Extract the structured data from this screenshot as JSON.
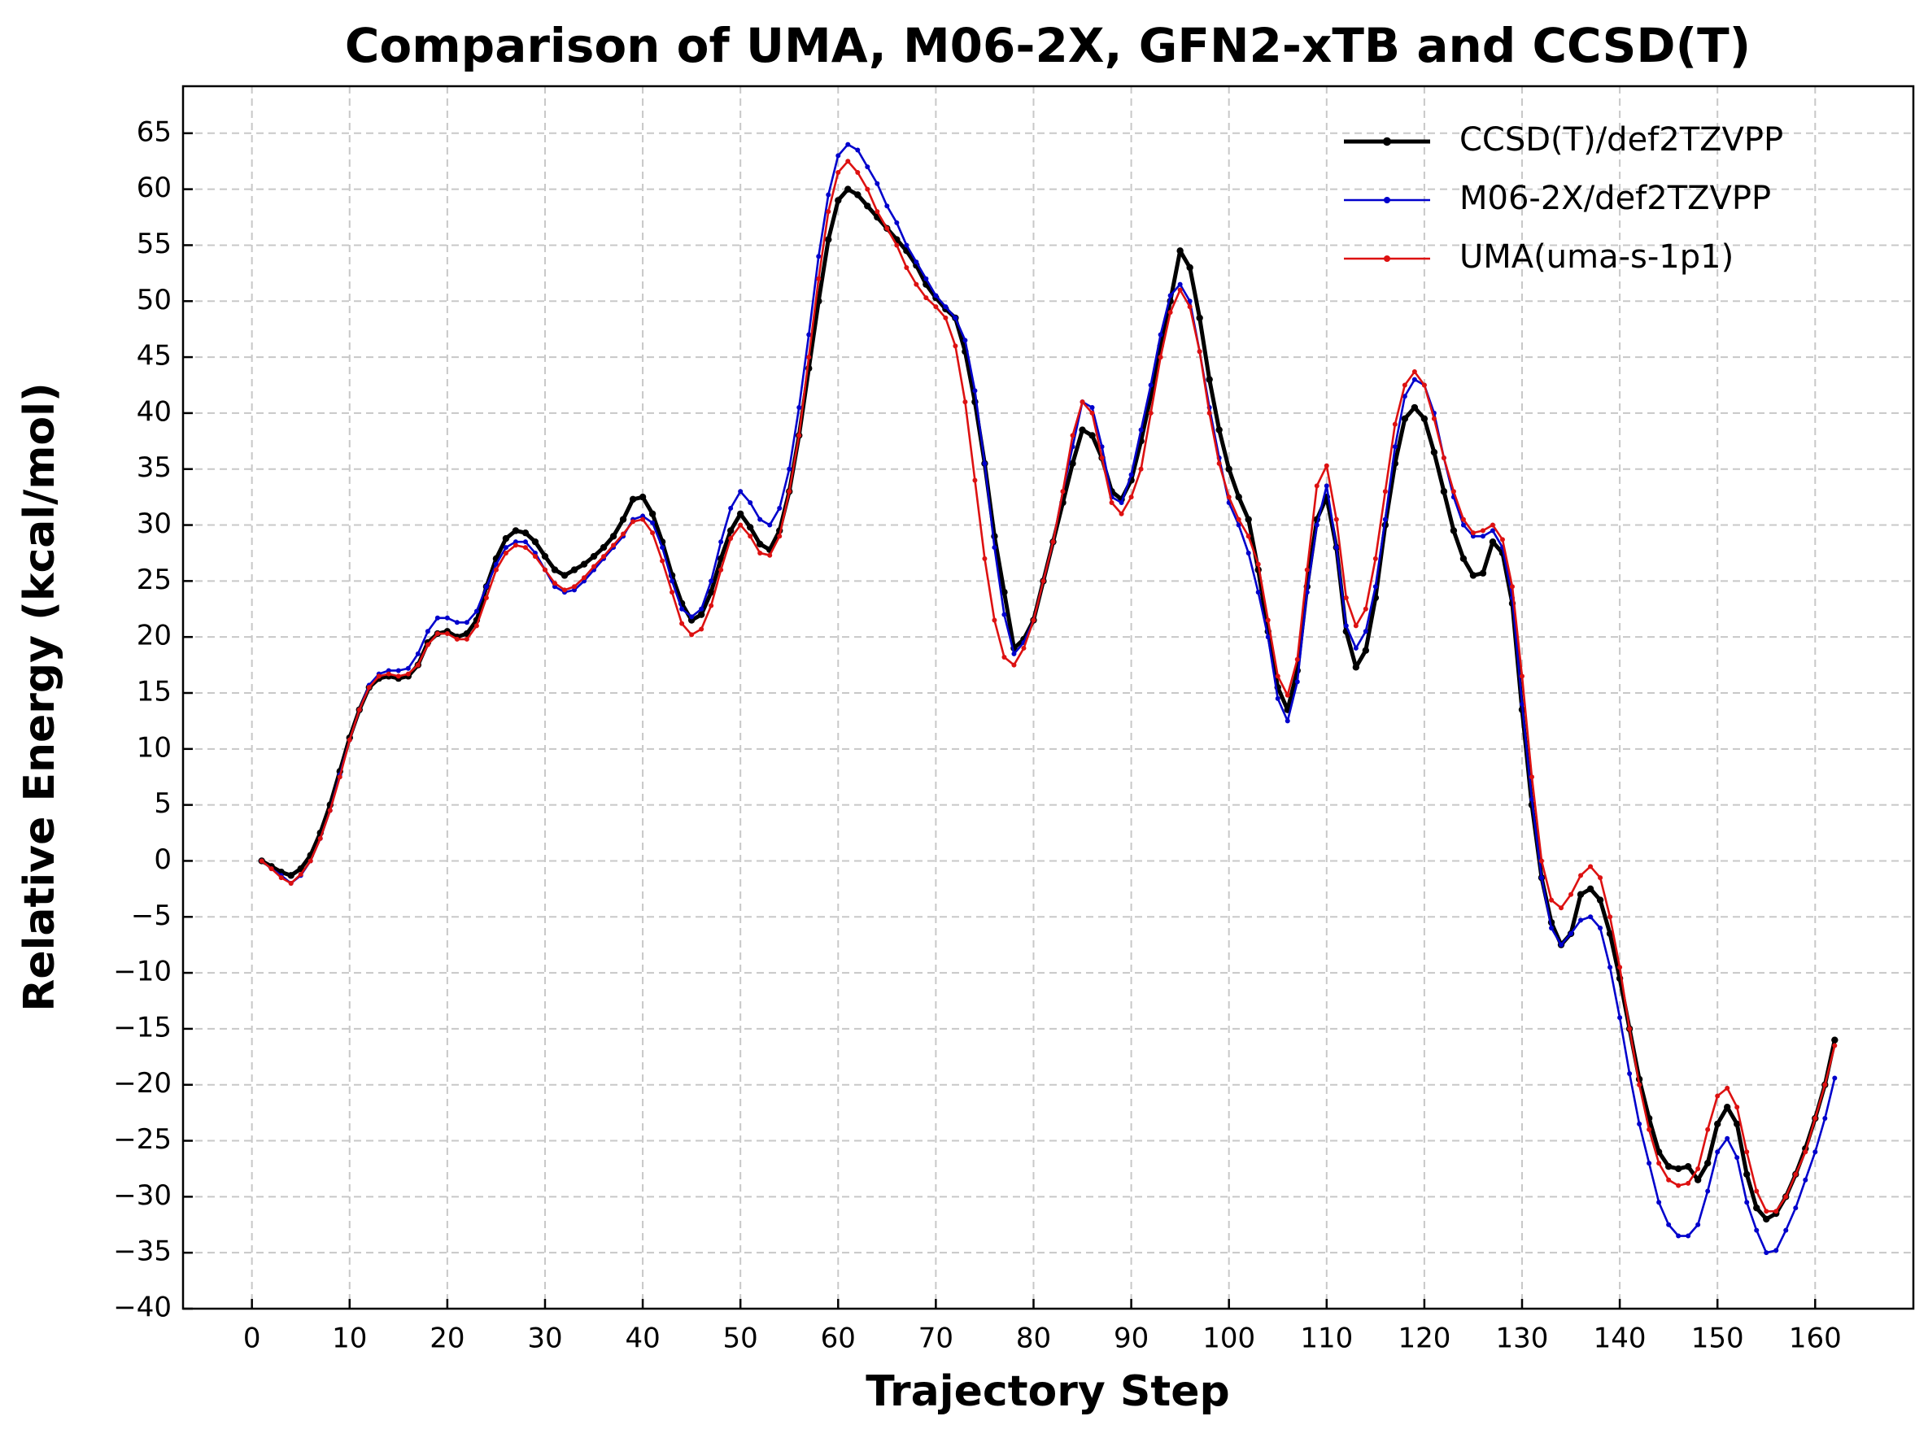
{
  "chart_data": {
    "type": "line",
    "title": "Comparison of UMA, M06-2X, GFN2-xTB and CCSD(T)",
    "xlabel": "Trajectory Step",
    "ylabel": "Relative Energy (kcal/mol)",
    "x": [
      1,
      2,
      3,
      4,
      5,
      6,
      7,
      8,
      9,
      10,
      11,
      12,
      13,
      14,
      15,
      16,
      17,
      18,
      19,
      20,
      21,
      22,
      23,
      24,
      25,
      26,
      27,
      28,
      29,
      30,
      31,
      32,
      33,
      34,
      35,
      36,
      37,
      38,
      39,
      40,
      41,
      42,
      43,
      44,
      45,
      46,
      47,
      48,
      49,
      50,
      51,
      52,
      53,
      54,
      55,
      56,
      57,
      58,
      59,
      60,
      61,
      62,
      63,
      64,
      65,
      66,
      67,
      68,
      69,
      70,
      71,
      72,
      73,
      74,
      75,
      76,
      77,
      78,
      79,
      80,
      81,
      82,
      83,
      84,
      85,
      86,
      87,
      88,
      89,
      90,
      91,
      92,
      93,
      94,
      95,
      96,
      97,
      98,
      99,
      100,
      101,
      102,
      103,
      104,
      105,
      106,
      107,
      108,
      109,
      110,
      111,
      112,
      113,
      114,
      115,
      116,
      117,
      118,
      119,
      120,
      121,
      122,
      123,
      124,
      125,
      126,
      127,
      128,
      129,
      130,
      131,
      132,
      133,
      134,
      135,
      136,
      137,
      138,
      139,
      140,
      141,
      142,
      143,
      144,
      145,
      146,
      147,
      148,
      149,
      150,
      151,
      152,
      153,
      154,
      155,
      156,
      157,
      158,
      159,
      160,
      161,
      162
    ],
    "series": [
      {
        "name": "CCSD(T)/def2TZVPP",
        "color": "#000000",
        "values": [
          0,
          -0.5,
          -1,
          -1.3,
          -0.7,
          0.5,
          2.5,
          5,
          8,
          11,
          13.5,
          15.5,
          16.3,
          16.5,
          16.3,
          16.5,
          17.5,
          19.5,
          20.3,
          20.5,
          20,
          20.3,
          21.5,
          24.5,
          27,
          28.8,
          29.5,
          29.3,
          28.5,
          27.2,
          26,
          25.5,
          26,
          26.5,
          27.2,
          28,
          29,
          30.5,
          32.3,
          32.5,
          31,
          28.5,
          25.5,
          23,
          21.5,
          22,
          24,
          27,
          29.5,
          31,
          29.8,
          28.3,
          27.8,
          29.5,
          33,
          38,
          44,
          50,
          55.5,
          59,
          60,
          59.5,
          58.5,
          57.5,
          56.5,
          55.5,
          54.5,
          53.2,
          51.5,
          50.3,
          49.3,
          48.5,
          45.5,
          41,
          35.5,
          29,
          24,
          19,
          19.8,
          21.5,
          25,
          28.5,
          32,
          35.5,
          38.5,
          38,
          36,
          33,
          32.3,
          34,
          37.5,
          41.5,
          46,
          50,
          54.5,
          53,
          48.5,
          43,
          38.5,
          35,
          32.5,
          30.5,
          26,
          20.5,
          15.5,
          13.5,
          17,
          24.5,
          30.5,
          32.5,
          28,
          20.5,
          17.3,
          18.8,
          23.5,
          30,
          35.5,
          39.5,
          40.5,
          39.5,
          36.5,
          33,
          29.5,
          27,
          25.5,
          25.7,
          28.5,
          27.5,
          23,
          13.5,
          5,
          -1.5,
          -5.5,
          -7.5,
          -6.5,
          -3,
          -2.5,
          -3.5,
          -6.5,
          -10.5,
          -15,
          -19.5,
          -23,
          -26,
          -27.3,
          -27.5,
          -27.3,
          -28.5,
          -27,
          -23.5,
          -22,
          -23.5,
          -28,
          -31,
          -32,
          -31.5,
          -30,
          -28,
          -25.7,
          -23,
          -20,
          -16
        ]
      },
      {
        "name": "M06-2X/def2TZVPP",
        "color": "#0000cc",
        "values": [
          0,
          -0.7,
          -1.3,
          -2,
          -1.3,
          0,
          2,
          4.5,
          7.7,
          10.8,
          13.5,
          15.7,
          16.7,
          17,
          17,
          17.2,
          18.5,
          20.5,
          21.7,
          21.7,
          21.3,
          21.3,
          22.3,
          24.5,
          26.5,
          28,
          28.5,
          28.5,
          27.5,
          26,
          24.5,
          24,
          24.2,
          25,
          26,
          27,
          28,
          29,
          30.5,
          30.8,
          30.2,
          28,
          25,
          22.5,
          21.8,
          22.5,
          25,
          28.5,
          31.5,
          33,
          32,
          30.5,
          30,
          31.5,
          35,
          40.5,
          47,
          54,
          59.5,
          63,
          64,
          63.5,
          62,
          60.5,
          58.5,
          57,
          55,
          53.5,
          52,
          50.5,
          49.5,
          48.5,
          46.5,
          42,
          35.5,
          28,
          22,
          18.5,
          19.5,
          21.5,
          25,
          28.5,
          33,
          37,
          41,
          40.5,
          37,
          32.5,
          32,
          34.5,
          38.5,
          42.5,
          47,
          50.5,
          51.5,
          50,
          45.5,
          40.5,
          36,
          32,
          30,
          27.5,
          24,
          20,
          14.5,
          12.5,
          16,
          24,
          30,
          33.5,
          28,
          21,
          19,
          20.5,
          24.5,
          30.5,
          37,
          41.5,
          43,
          42.5,
          40,
          36,
          32.5,
          30,
          29,
          29,
          29.5,
          28,
          23.5,
          14,
          5.5,
          -1.5,
          -6,
          -7.5,
          -6.5,
          -5.3,
          -5,
          -6,
          -9.5,
          -14,
          -19,
          -23.5,
          -27,
          -30.5,
          -32.5,
          -33.5,
          -33.5,
          -32.5,
          -29.5,
          -26,
          -24.8,
          -26.5,
          -30.5,
          -33,
          -35,
          -34.8,
          -33,
          -31,
          -28.5,
          -26,
          -23,
          -19.4
        ]
      },
      {
        "name": "UMA(uma-s-1p1)",
        "color": "#dd1111",
        "values": [
          0,
          -0.7,
          -1.5,
          -2,
          -1.2,
          0,
          2,
          4.5,
          7.5,
          10.8,
          13.5,
          15.5,
          16.5,
          16.7,
          16.5,
          16.7,
          17.5,
          19.3,
          20.3,
          20.3,
          19.8,
          19.8,
          21,
          23.5,
          26,
          27.5,
          28.2,
          28,
          27.2,
          26,
          24.8,
          24.2,
          24.5,
          25.3,
          26.3,
          27.2,
          28.2,
          29.2,
          30.3,
          30.5,
          29.3,
          26.8,
          24,
          21.2,
          20.2,
          20.7,
          22.8,
          26,
          28.8,
          30,
          29,
          27.5,
          27.3,
          29,
          33,
          38,
          45,
          52,
          58,
          61.5,
          62.5,
          61.5,
          60,
          58,
          56.5,
          55,
          53,
          51.5,
          50.3,
          49.5,
          48.5,
          46,
          41,
          34,
          27,
          21.5,
          18.2,
          17.5,
          19,
          21.5,
          25,
          28.5,
          33,
          38,
          41,
          40,
          36,
          32,
          31,
          32.5,
          35,
          40,
          45,
          49,
          51,
          49.5,
          45.5,
          40,
          35.5,
          32.5,
          30.5,
          29,
          26.5,
          21.5,
          16.5,
          14.8,
          18,
          26,
          33.5,
          35.3,
          30.5,
          23.5,
          21,
          22.5,
          27,
          33,
          39,
          42.5,
          43.7,
          42.5,
          39.5,
          36,
          33,
          30.5,
          29.3,
          29.5,
          30,
          28.7,
          24.5,
          16.5,
          7.5,
          0,
          -3.5,
          -4.2,
          -3,
          -1.3,
          -0.5,
          -1.5,
          -5,
          -9.5,
          -15,
          -20,
          -24,
          -27,
          -28.5,
          -29,
          -28.8,
          -27.5,
          -24,
          -21,
          -20.3,
          -22,
          -26,
          -29.5,
          -31.3,
          -31.3,
          -30,
          -28,
          -26,
          -23,
          -20,
          -16.5
        ]
      }
    ],
    "xlim": [
      -7.05,
      170.05
    ],
    "ylim": [
      -40,
      69.2
    ],
    "xticks": [
      0,
      10,
      20,
      30,
      40,
      50,
      60,
      70,
      80,
      90,
      100,
      110,
      120,
      130,
      140,
      150,
      160
    ],
    "yticks": [
      {
        "value": -40,
        "label": "−40"
      },
      {
        "value": -35,
        "label": "−35"
      },
      {
        "value": -30,
        "label": "−30"
      },
      {
        "value": -25,
        "label": "−25"
      },
      {
        "value": -20,
        "label": "−20"
      },
      {
        "value": -15,
        "label": "−15"
      },
      {
        "value": -10,
        "label": "−10"
      },
      {
        "value": -5,
        "label": "−5"
      },
      0,
      5,
      10,
      15,
      20,
      25,
      30,
      35,
      40,
      45,
      50,
      55,
      60,
      65
    ],
    "grid": true,
    "legend": "upper right"
  }
}
